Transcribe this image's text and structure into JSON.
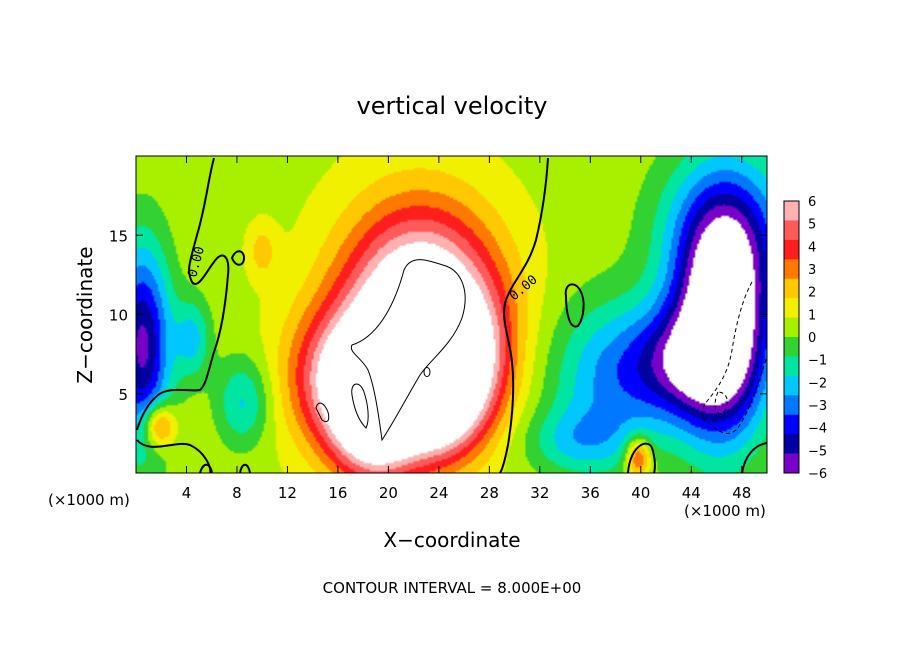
{
  "chart_data": {
    "type": "heatmap",
    "title": "vertical velocity",
    "xlabel": "X−coordinate",
    "ylabel": "Z−coordinate",
    "x_unit_left": "(×1000 m)",
    "x_unit_right": "(×1000 m)",
    "footer": "CONTOUR INTERVAL = 8.000E+00",
    "xlim": [
      0,
      50
    ],
    "ylim": [
      0,
      20
    ],
    "x_ticks": [
      4,
      8,
      12,
      16,
      20,
      24,
      28,
      32,
      36,
      40,
      44,
      48
    ],
    "y_ticks": [
      5,
      10,
      15
    ],
    "colorbar": {
      "labels": [
        "6",
        "5",
        "4",
        "3",
        "2",
        "1",
        "0",
        "−1",
        "−2",
        "−3",
        "−4",
        "−5",
        "−6"
      ],
      "colors": [
        "#ffb0b0",
        "#ff5a5a",
        "#ff1e1e",
        "#ff7800",
        "#ffc800",
        "#f0f000",
        "#a8f000",
        "#32d232",
        "#00e6a0",
        "#00c8ff",
        "#0078ff",
        "#0000ff",
        "#0000a0",
        "#7800c8"
      ],
      "over_color": "#ffffff",
      "under_color": "#ffffff"
    },
    "contour_labels": [
      "0.00",
      "0.00"
    ],
    "features": [
      {
        "kind": "updraft-core",
        "x": 22.5,
        "z": 10.0,
        "sx": 4.2,
        "sz": 4.5,
        "w": 9
      },
      {
        "kind": "updraft-core",
        "x": 19.0,
        "z": 4.0,
        "sx": 2.5,
        "sz": 3.0,
        "w": 8
      },
      {
        "kind": "updraft-core",
        "x": 24.0,
        "z": 4.5,
        "sx": 2.2,
        "sz": 2.5,
        "w": 6
      },
      {
        "kind": "updraft",
        "x": 16.0,
        "z": 6.0,
        "sx": 3.0,
        "sz": 3.0,
        "w": 4
      },
      {
        "kind": "updraft",
        "x": 27.0,
        "z": 7.0,
        "sx": 2.0,
        "sz": 3.0,
        "w": 3
      },
      {
        "kind": "cell",
        "x": 1.8,
        "z": 3.0,
        "sx": 0.9,
        "sz": 1.0,
        "w": 4
      },
      {
        "kind": "cell",
        "x": 39.8,
        "z": 1.0,
        "sx": 0.7,
        "sz": 0.9,
        "w": 4
      },
      {
        "kind": "cell",
        "x": 10.0,
        "z": 14.0,
        "sx": 0.8,
        "sz": 1.2,
        "w": 1.5
      },
      {
        "kind": "downdraft-core",
        "x": 46.5,
        "z": 9.5,
        "sx": 2.6,
        "sz": 5.0,
        "w": -9
      },
      {
        "kind": "downdraft",
        "x": 43.0,
        "z": 7.0,
        "sx": 3.0,
        "sz": 2.5,
        "w": -4
      },
      {
        "kind": "downdraft",
        "x": 37.5,
        "z": 6.0,
        "sx": 3.5,
        "sz": 3.5,
        "w": -3
      },
      {
        "kind": "downdraft",
        "x": 47.0,
        "z": 15.5,
        "sx": 4.0,
        "sz": 3.5,
        "w": -3
      },
      {
        "kind": "downdraft",
        "x": 0.5,
        "z": 8.0,
        "sx": 1.6,
        "sz": 4.5,
        "w": -6
      },
      {
        "kind": "downdraft",
        "x": 4.5,
        "z": 8.5,
        "sx": 1.0,
        "sz": 1.8,
        "w": -2.5
      },
      {
        "kind": "downdraft",
        "x": 8.5,
        "z": 4.5,
        "sx": 1.5,
        "sz": 2.0,
        "w": -2.5
      },
      {
        "kind": "downdraft",
        "x": 35.0,
        "z": 2.0,
        "sx": 3.0,
        "sz": 1.5,
        "w": -2
      }
    ]
  }
}
